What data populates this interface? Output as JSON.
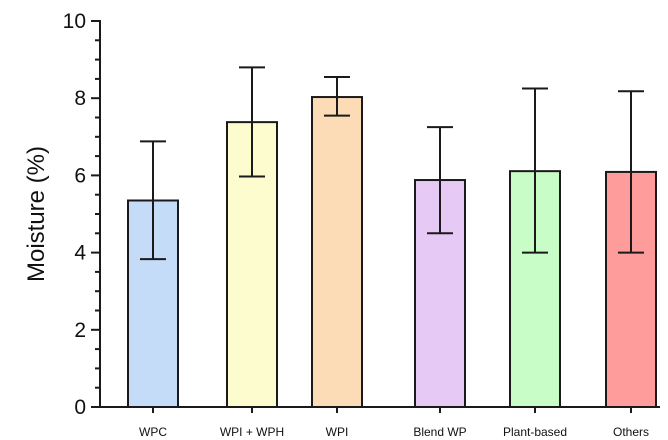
{
  "chart_data": {
    "type": "bar",
    "title": "",
    "xlabel": "",
    "ylabel": "Moisture (%)",
    "ylim": [
      0,
      10
    ],
    "yticks_major": [
      0,
      2,
      4,
      6,
      8,
      10
    ],
    "yticks_minor_step": 0.5,
    "grid": false,
    "legend": "none",
    "categories": [
      "WPC",
      "WPI + WPH",
      "WPI",
      "Blend WP",
      "Plant-based",
      "Others"
    ],
    "values": [
      5.35,
      7.38,
      8.03,
      5.88,
      6.11,
      6.09
    ],
    "error_low": [
      3.83,
      5.97,
      7.55,
      4.5,
      4.0,
      4.0
    ],
    "error_high": [
      6.88,
      8.8,
      8.55,
      7.25,
      8.25,
      8.18
    ],
    "bar_colors": [
      "#c5dcf8",
      "#fdfccf",
      "#fcdcb6",
      "#e6c9f5",
      "#c9fdc7",
      "#fd9c9b"
    ],
    "bar_edge_color": "#1a1a1a",
    "error_bar_color": "#1a1a1a"
  }
}
